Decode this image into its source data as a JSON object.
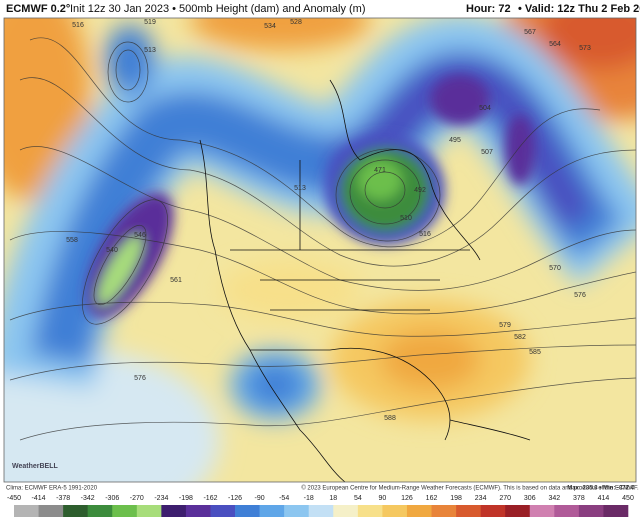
{
  "header": {
    "model": "ECMWF 0.2°",
    "subtitle": "Init 12z 30 Jan 2023 • 500mb Height (dam) and Anomaly (m)",
    "hour": "Hour: 72",
    "valid": "• Valid: 12z Thu 2 Feb 2023"
  },
  "footer": {
    "clima": "Clima: ECMWF ERA-5 1991-2020",
    "copyright": "© 2023 European Centre for Medium-Range Weather Forecasts (ECMWF). This is based on data and products of the ECMWF.",
    "maxmin": "Max: 235.3 • Min: -372.4",
    "logo": "WeatherBELL"
  },
  "colorbar": {
    "ticks": [
      -450,
      -414,
      -378,
      -342,
      -306,
      -270,
      -234,
      -198,
      -162,
      -126,
      -90,
      -54,
      -18,
      18,
      54,
      90,
      126,
      162,
      198,
      234,
      270,
      306,
      342,
      378,
      414,
      450
    ],
    "colors": [
      "#b4b4b4",
      "#8c8c8c",
      "#2e5e2e",
      "#3c8c3c",
      "#6cbf4c",
      "#a7dd7a",
      "#3d1e6e",
      "#5a2f9a",
      "#4a4fc0",
      "#3f7fd6",
      "#5fa6e8",
      "#8cc6f0",
      "#c3e0f5",
      "#f5f0c8",
      "#f7e08a",
      "#f5c860",
      "#f0a840",
      "#e8843a",
      "#d85a2e",
      "#c03428",
      "#9a1f26",
      "#d080b0",
      "#b05a98",
      "#8a3e80",
      "#6a2a66"
    ]
  },
  "contour_labels": [
    "516",
    "513",
    "519",
    "534",
    "528",
    "567",
    "564",
    "573",
    "504",
    "507",
    "495",
    "471",
    "492",
    "510",
    "516",
    "513",
    "546",
    "558",
    "561",
    "540",
    "576",
    "579",
    "582",
    "585",
    "588",
    "570",
    "576"
  ]
}
